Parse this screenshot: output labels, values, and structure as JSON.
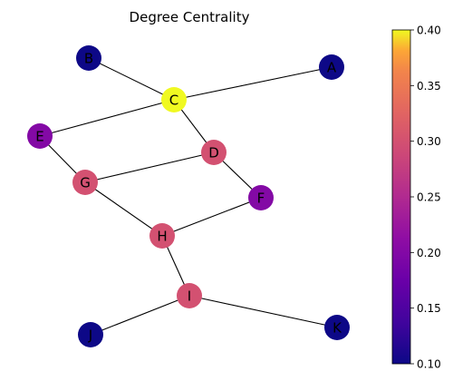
{
  "title": "Degree Centrality",
  "colormap": "plasma",
  "colorbar": {
    "min": 0.1,
    "max": 0.4,
    "ticks": [
      "0.10",
      "0.15",
      "0.20",
      "0.25",
      "0.30",
      "0.35",
      "0.40"
    ],
    "tick_values": [
      0.1,
      0.15,
      0.2,
      0.25,
      0.3,
      0.35,
      0.4
    ]
  },
  "graph": {
    "nodes": [
      {
        "id": "A",
        "label": "A",
        "centrality": 0.1
      },
      {
        "id": "B",
        "label": "B",
        "centrality": 0.1
      },
      {
        "id": "C",
        "label": "C",
        "centrality": 0.4
      },
      {
        "id": "D",
        "label": "D",
        "centrality": 0.3
      },
      {
        "id": "E",
        "label": "E",
        "centrality": 0.2
      },
      {
        "id": "F",
        "label": "F",
        "centrality": 0.2
      },
      {
        "id": "G",
        "label": "G",
        "centrality": 0.3
      },
      {
        "id": "H",
        "label": "H",
        "centrality": 0.3
      },
      {
        "id": "I",
        "label": "I",
        "centrality": 0.3
      },
      {
        "id": "J",
        "label": "J",
        "centrality": 0.1
      },
      {
        "id": "K",
        "label": "K",
        "centrality": 0.1
      }
    ],
    "edges": [
      [
        "B",
        "C"
      ],
      [
        "C",
        "A"
      ],
      [
        "C",
        "E"
      ],
      [
        "C",
        "D"
      ],
      [
        "E",
        "G"
      ],
      [
        "G",
        "D"
      ],
      [
        "D",
        "F"
      ],
      [
        "G",
        "H"
      ],
      [
        "H",
        "F"
      ],
      [
        "H",
        "I"
      ],
      [
        "I",
        "J"
      ],
      [
        "I",
        "K"
      ]
    ]
  }
}
